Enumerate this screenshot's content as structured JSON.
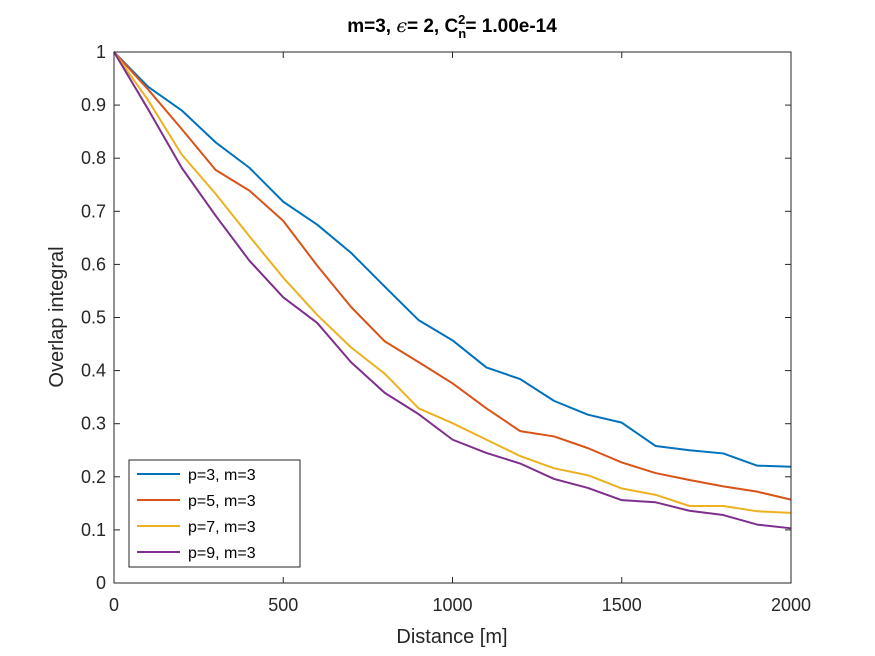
{
  "chart_data": {
    "type": "line",
    "title": {
      "m_part": "m=3, ",
      "eps_symbol": "ϵ",
      "eps_part": "= 2, C",
      "sub": "n",
      "sup": "2",
      "value_part": "= 1.00e-14"
    },
    "xlabel": "Distance [m]",
    "ylabel": "Overlap integral",
    "xlim": [
      0,
      2000
    ],
    "ylim": [
      0,
      1
    ],
    "xticks": [
      0,
      500,
      1000,
      1500,
      2000
    ],
    "yticks": [
      0,
      0.1,
      0.2,
      0.3,
      0.4,
      0.5,
      0.6,
      0.7,
      0.8,
      0.9,
      1
    ],
    "xtick_labels": [
      "0",
      "500",
      "1000",
      "1500",
      "2000"
    ],
    "ytick_labels": [
      "0",
      "0.1",
      "0.2",
      "0.3",
      "0.4",
      "0.5",
      "0.6",
      "0.7",
      "0.8",
      "0.9",
      "1"
    ],
    "legend_position": "bottom-left",
    "x": [
      0,
      100,
      200,
      300,
      400,
      500,
      600,
      700,
      800,
      900,
      1000,
      1100,
      1200,
      1300,
      1400,
      1500,
      1600,
      1700,
      1800,
      1900,
      2000
    ],
    "series": [
      {
        "name": "p=3, m=3",
        "color": "#0072BD",
        "values": [
          1.0,
          0.935,
          0.89,
          0.83,
          0.782,
          0.718,
          0.675,
          0.622,
          0.558,
          0.495,
          0.457,
          0.406,
          0.384,
          0.343,
          0.317,
          0.302,
          0.258,
          0.25,
          0.244,
          0.221,
          0.219
        ]
      },
      {
        "name": "p=5, m=3",
        "color": "#D95319",
        "values": [
          1.0,
          0.93,
          0.855,
          0.778,
          0.739,
          0.682,
          0.598,
          0.52,
          0.455,
          0.416,
          0.376,
          0.329,
          0.286,
          0.276,
          0.254,
          0.227,
          0.207,
          0.194,
          0.182,
          0.172,
          0.157
        ]
      },
      {
        "name": "p=7, m=3",
        "color": "#EDB120",
        "values": [
          1.0,
          0.91,
          0.807,
          0.733,
          0.653,
          0.575,
          0.505,
          0.444,
          0.394,
          0.329,
          0.301,
          0.27,
          0.239,
          0.216,
          0.203,
          0.178,
          0.166,
          0.145,
          0.145,
          0.135,
          0.132
        ]
      },
      {
        "name": "p=9, m=3",
        "color": "#7E2F8E",
        "values": [
          1.0,
          0.893,
          0.782,
          0.692,
          0.607,
          0.538,
          0.49,
          0.416,
          0.358,
          0.318,
          0.27,
          0.245,
          0.225,
          0.196,
          0.179,
          0.156,
          0.152,
          0.136,
          0.128,
          0.11,
          0.103
        ]
      }
    ]
  }
}
